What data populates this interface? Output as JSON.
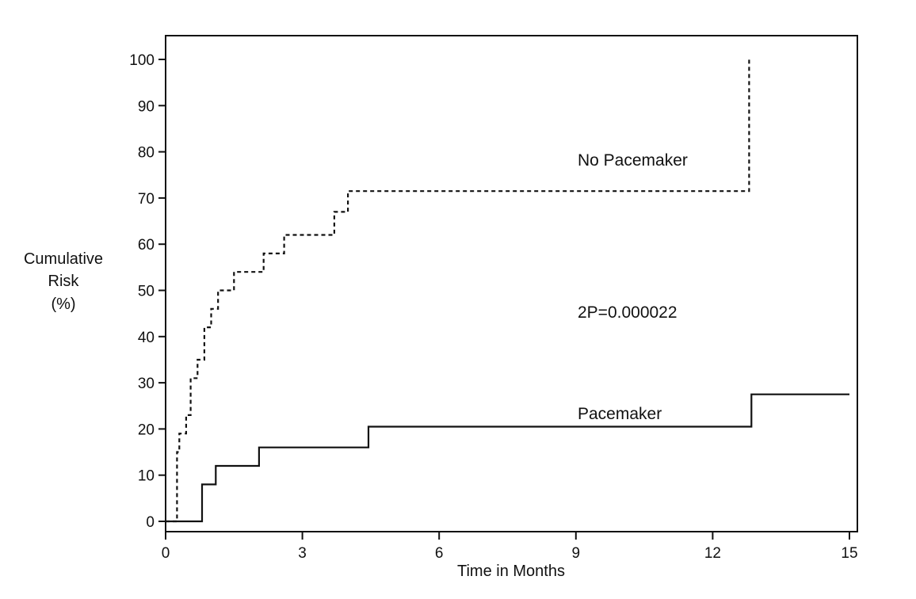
{
  "chart_data": {
    "type": "line",
    "title": "",
    "xlabel": "Time in Months",
    "ylabel_lines": [
      "Cumulative",
      "Risk",
      "(%)"
    ],
    "xlim": [
      0,
      15
    ],
    "ylim": [
      0,
      100
    ],
    "xticks": [
      0,
      3,
      6,
      9,
      12,
      15
    ],
    "yticks": [
      0,
      10,
      20,
      30,
      40,
      50,
      60,
      70,
      80,
      90,
      100
    ],
    "grid": false,
    "legend": "none",
    "series": [
      {
        "name": "No Pacemaker",
        "style": "dashed",
        "step": true,
        "x": [
          0.25,
          0.25,
          0.3,
          0.45,
          0.55,
          0.7,
          0.85,
          1.0,
          1.15,
          1.5,
          2.15,
          2.6,
          3.7,
          4.0,
          12.8,
          12.8
        ],
        "y": [
          0,
          15,
          19,
          23,
          31,
          35,
          42,
          46,
          50,
          54,
          58,
          62,
          67,
          71.5,
          71.5,
          100
        ]
      },
      {
        "name": "Pacemaker",
        "style": "solid",
        "step": true,
        "x": [
          0.0,
          0.8,
          1.1,
          2.05,
          4.45,
          12.85,
          15.0
        ],
        "y": [
          0,
          8,
          12,
          16,
          20.5,
          27.5,
          27.5
        ]
      }
    ],
    "annotations": [
      {
        "text": "No Pacemaker"
      },
      {
        "text": "2P=0.000022"
      },
      {
        "text": "Pacemaker"
      }
    ]
  }
}
